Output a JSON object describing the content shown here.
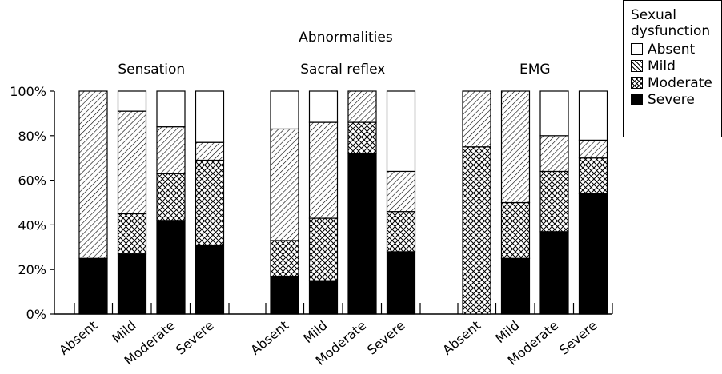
{
  "chart_data": {
    "type": "bar",
    "stacked": true,
    "title": "Abnormalities",
    "ylim": [
      0,
      100
    ],
    "y_ticks": [
      "0%",
      "20%",
      "40%",
      "60%",
      "80%",
      "100%"
    ],
    "y_tick_values": [
      0,
      20,
      40,
      60,
      80,
      100
    ],
    "categories": [
      "Absent",
      "Mild",
      "Moderate",
      "Severe"
    ],
    "legend": {
      "title": "Sexual\ndysfunction",
      "placement": "top-right",
      "entries": [
        "Absent",
        "Mild",
        "Moderate",
        "Severe"
      ]
    },
    "groups": [
      {
        "name": "Sensation",
        "series": [
          {
            "name": "Severe",
            "values": [
              25,
              27,
              42,
              31
            ]
          },
          {
            "name": "Moderate",
            "values": [
              0,
              18,
              21,
              38
            ]
          },
          {
            "name": "Mild",
            "values": [
              75,
              46,
              21,
              8
            ]
          },
          {
            "name": "Absent",
            "values": [
              0,
              9,
              16,
              23
            ]
          }
        ]
      },
      {
        "name": "Sacral reflex",
        "series": [
          {
            "name": "Severe",
            "values": [
              17,
              15,
              72,
              28
            ]
          },
          {
            "name": "Moderate",
            "values": [
              16,
              28,
              14,
              18
            ]
          },
          {
            "name": "Mild",
            "values": [
              50,
              43,
              14,
              18
            ]
          },
          {
            "name": "Absent",
            "values": [
              17,
              14,
              0,
              36
            ]
          }
        ]
      },
      {
        "name": "EMG",
        "series": [
          {
            "name": "Severe",
            "values": [
              0,
              25,
              37,
              54
            ]
          },
          {
            "name": "Moderate",
            "values": [
              75,
              25,
              27,
              16
            ]
          },
          {
            "name": "Mild",
            "values": [
              25,
              50,
              16,
              8
            ]
          },
          {
            "name": "Absent",
            "values": [
              0,
              0,
              20,
              22
            ]
          }
        ]
      }
    ],
    "colors": {
      "Absent": "#ffffff",
      "Mild": "hatch-diagonal",
      "Moderate": "hatch-cross",
      "Severe": "#000000"
    },
    "grid": false
  }
}
